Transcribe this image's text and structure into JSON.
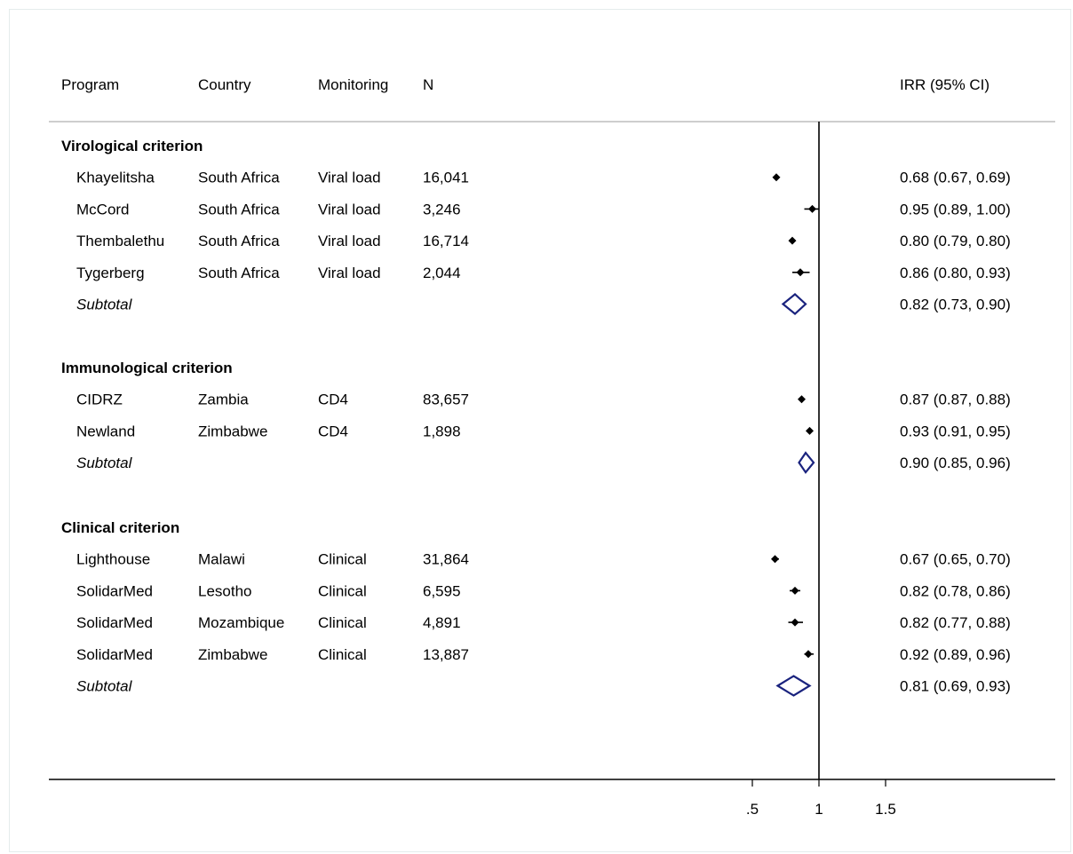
{
  "chart_data": {
    "type": "forest",
    "columns": [
      "Program",
      "Country",
      "Monitoring",
      "N"
    ],
    "estimate_header": "IRR (95% CI)",
    "x_ticks": [
      {
        "value": 0.5,
        "label": ".5"
      },
      {
        "value": 1.0,
        "label": "1"
      },
      {
        "value": 1.5,
        "label": "1.5"
      }
    ],
    "reference_line": 1,
    "subtotal_color": "#1a237e",
    "groups": [
      {
        "title": "Virological criterion",
        "studies": [
          {
            "program": "Khayelitsha",
            "country": "South Africa",
            "monitoring": "Viral load",
            "n": "16,041",
            "irr": 0.68,
            "lo": 0.67,
            "hi": 0.69,
            "label": "0.68 (0.67, 0.69)"
          },
          {
            "program": "McCord",
            "country": "South Africa",
            "monitoring": "Viral load",
            "n": "3,246",
            "irr": 0.95,
            "lo": 0.89,
            "hi": 1.0,
            "label": "0.95 (0.89, 1.00)"
          },
          {
            "program": "Thembalethu",
            "country": "South Africa",
            "monitoring": "Viral load",
            "n": "16,714",
            "irr": 0.8,
            "lo": 0.79,
            "hi": 0.8,
            "label": "0.80 (0.79, 0.80)"
          },
          {
            "program": "Tygerberg",
            "country": "South Africa",
            "monitoring": "Viral load",
            "n": "2,044",
            "irr": 0.86,
            "lo": 0.8,
            "hi": 0.93,
            "label": "0.86 (0.80, 0.93)"
          }
        ],
        "subtotal": {
          "label_text": "Subtotal",
          "irr": 0.82,
          "lo": 0.73,
          "hi": 0.9,
          "label": "0.82 (0.73, 0.90)"
        }
      },
      {
        "title": "Immunological  criterion",
        "studies": [
          {
            "program": "CIDRZ",
            "country": "Zambia",
            "monitoring": "CD4",
            "n": "83,657",
            "irr": 0.87,
            "lo": 0.87,
            "hi": 0.88,
            "label": "0.87 (0.87, 0.88)"
          },
          {
            "program": "Newland",
            "country": "Zimbabwe",
            "monitoring": "CD4",
            "n": "1,898",
            "irr": 0.93,
            "lo": 0.91,
            "hi": 0.95,
            "label": "0.93 (0.91, 0.95)"
          }
        ],
        "subtotal": {
          "label_text": "Subtotal",
          "irr": 0.9,
          "lo": 0.85,
          "hi": 0.96,
          "label": "0.90 (0.85, 0.96)"
        }
      },
      {
        "title": "Clinical criterion",
        "studies": [
          {
            "program": "Lighthouse",
            "country": "Malawi",
            "monitoring": "Clinical",
            "n": "31,864",
            "irr": 0.67,
            "lo": 0.65,
            "hi": 0.7,
            "label": "0.67 (0.65, 0.70)"
          },
          {
            "program": "SolidarMed",
            "country": "Lesotho",
            "monitoring": "Clinical",
            "n": "6,595",
            "irr": 0.82,
            "lo": 0.78,
            "hi": 0.86,
            "label": "0.82 (0.78, 0.86)"
          },
          {
            "program": "SolidarMed",
            "country": "Mozambique",
            "monitoring": "Clinical",
            "n": "4,891",
            "irr": 0.82,
            "lo": 0.77,
            "hi": 0.88,
            "label": "0.82 (0.77, 0.88)"
          },
          {
            "program": "SolidarMed",
            "country": "Zimbabwe",
            "monitoring": "Clinical",
            "n": "13,887",
            "irr": 0.92,
            "lo": 0.89,
            "hi": 0.96,
            "label": "0.92 (0.89, 0.96)"
          }
        ],
        "subtotal": {
          "label_text": "Subtotal",
          "irr": 0.81,
          "lo": 0.69,
          "hi": 0.93,
          "label": "0.81 (0.69, 0.93)"
        }
      }
    ]
  }
}
